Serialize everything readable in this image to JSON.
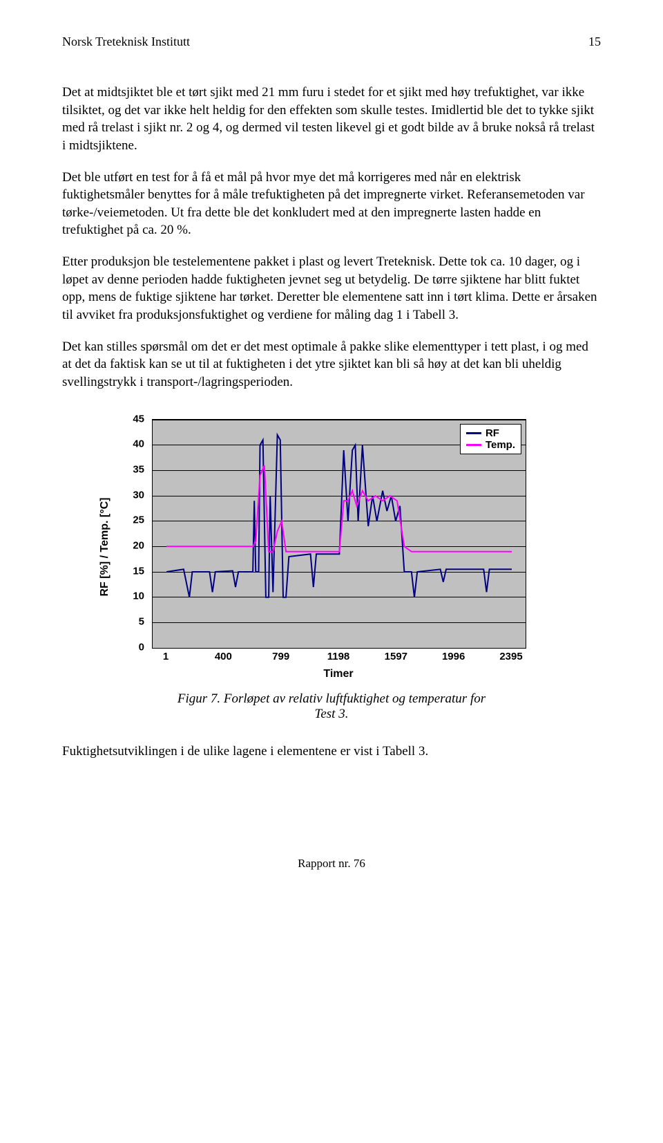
{
  "header": {
    "title": "Norsk Treteknisk Institutt",
    "page_number": "15"
  },
  "paragraphs": {
    "p1": "Det at midtsjiktet ble et tørt sjikt med 21 mm furu i stedet for et sjikt med høy trefuktighet, var ikke tilsiktet, og det var ikke helt heldig for den effekten som skulle testes. Imidlertid ble det to tykke sjikt med rå trelast i sjikt nr. 2 og 4, og dermed vil testen likevel gi et godt bilde av å bruke nokså rå trelast i midtsjiktene.",
    "p2": "Det ble utført en test for å få et mål på hvor mye det må korrigeres med når en elektrisk fuktighetsmåler benyttes for å måle trefuktigheten på det impregnerte virket. Referansemetoden var tørke-/veiemetoden. Ut fra dette ble det konkludert med at den impregnerte lasten hadde en trefuktighet på ca. 20 %.",
    "p3": "Etter produksjon ble testelementene pakket i plast og levert Treteknisk. Dette tok ca. 10 dager, og i løpet av denne perioden hadde fuktigheten jevnet seg ut betydelig. De tørre sjiktene har blitt fuktet opp, mens de fuktige sjiktene har tørket. Deretter ble elementene satt inn i tørt klima. Dette er årsaken til avviket fra produksjonsfuktighet og verdiene for måling dag 1 i Tabell 3.",
    "p4": "Det kan stilles spørsmål om det er det mest optimale å pakke slike elementtyper i tett plast, i og med at det da faktisk kan se ut til at fuktigheten i det ytre sjiktet kan bli så høy at det kan bli uheldig svellingstrykk i transport-/lagringsperioden.",
    "p5": "Fuktighetsutviklingen i de ulike lagene i elementene er vist i Tabell 3."
  },
  "chart": {
    "type": "line",
    "y_label": "RF [%] / Temp. [°C]",
    "x_label": "Timer",
    "ylim": [
      0,
      45
    ],
    "ytick_step": 5,
    "y_ticks": [
      "0",
      "5",
      "10",
      "15",
      "20",
      "25",
      "30",
      "35",
      "40",
      "45"
    ],
    "x_ticks": [
      "1",
      "400",
      "799",
      "1198",
      "1597",
      "1996",
      "2395"
    ],
    "xlim": [
      1,
      2395
    ],
    "background_color": "#c0c0c0",
    "grid_color": "#000000",
    "title_fontsize": 16,
    "label_fontsize": 16,
    "tick_fontsize": 15,
    "legend": {
      "position": "top-right",
      "items": [
        {
          "label": "RF",
          "color": "#000080"
        },
        {
          "label": "Temp.",
          "color": "#ff00ff"
        }
      ]
    },
    "series": {
      "rf": {
        "color": "#000080",
        "line_width": 2,
        "points": [
          [
            1,
            15
          ],
          [
            120,
            15.5
          ],
          [
            160,
            10
          ],
          [
            180,
            15
          ],
          [
            300,
            15
          ],
          [
            320,
            11
          ],
          [
            340,
            15
          ],
          [
            460,
            15.2
          ],
          [
            480,
            12
          ],
          [
            500,
            15
          ],
          [
            600,
            15
          ],
          [
            610,
            29
          ],
          [
            620,
            15
          ],
          [
            640,
            15
          ],
          [
            650,
            40
          ],
          [
            670,
            41
          ],
          [
            690,
            10
          ],
          [
            710,
            10
          ],
          [
            720,
            30
          ],
          [
            740,
            11
          ],
          [
            770,
            42
          ],
          [
            790,
            41
          ],
          [
            810,
            10
          ],
          [
            830,
            10
          ],
          [
            850,
            18
          ],
          [
            1000,
            18.5
          ],
          [
            1020,
            12
          ],
          [
            1040,
            18.5
          ],
          [
            1200,
            18.5
          ],
          [
            1230,
            39
          ],
          [
            1260,
            25
          ],
          [
            1290,
            39
          ],
          [
            1310,
            40
          ],
          [
            1330,
            25
          ],
          [
            1360,
            40
          ],
          [
            1400,
            24
          ],
          [
            1430,
            30
          ],
          [
            1460,
            25
          ],
          [
            1500,
            31
          ],
          [
            1530,
            27
          ],
          [
            1560,
            30
          ],
          [
            1590,
            25
          ],
          [
            1620,
            28
          ],
          [
            1650,
            15
          ],
          [
            1700,
            15
          ],
          [
            1720,
            10
          ],
          [
            1740,
            15
          ],
          [
            1900,
            15.5
          ],
          [
            1920,
            13
          ],
          [
            1940,
            15.5
          ],
          [
            2200,
            15.5
          ],
          [
            2220,
            11
          ],
          [
            2240,
            15.5
          ],
          [
            2395,
            15.5
          ]
        ]
      },
      "temp": {
        "color": "#ff00ff",
        "line_width": 2,
        "points": [
          [
            1,
            20
          ],
          [
            500,
            20
          ],
          [
            600,
            20
          ],
          [
            620,
            21
          ],
          [
            650,
            34
          ],
          [
            680,
            36
          ],
          [
            710,
            19
          ],
          [
            740,
            19
          ],
          [
            770,
            23
          ],
          [
            800,
            25
          ],
          [
            830,
            19
          ],
          [
            1000,
            19
          ],
          [
            1200,
            19
          ],
          [
            1230,
            29
          ],
          [
            1260,
            29
          ],
          [
            1290,
            31
          ],
          [
            1320,
            28
          ],
          [
            1360,
            31
          ],
          [
            1400,
            29
          ],
          [
            1450,
            30
          ],
          [
            1500,
            29
          ],
          [
            1550,
            30
          ],
          [
            1600,
            29
          ],
          [
            1650,
            20
          ],
          [
            1700,
            19
          ],
          [
            2000,
            19
          ],
          [
            2395,
            19
          ]
        ]
      }
    }
  },
  "caption": {
    "line1": "Figur 7. Forløpet av relativ luftfuktighet og temperatur for",
    "line2": "Test 3."
  },
  "footer": {
    "text": "Rapport nr. 76"
  }
}
